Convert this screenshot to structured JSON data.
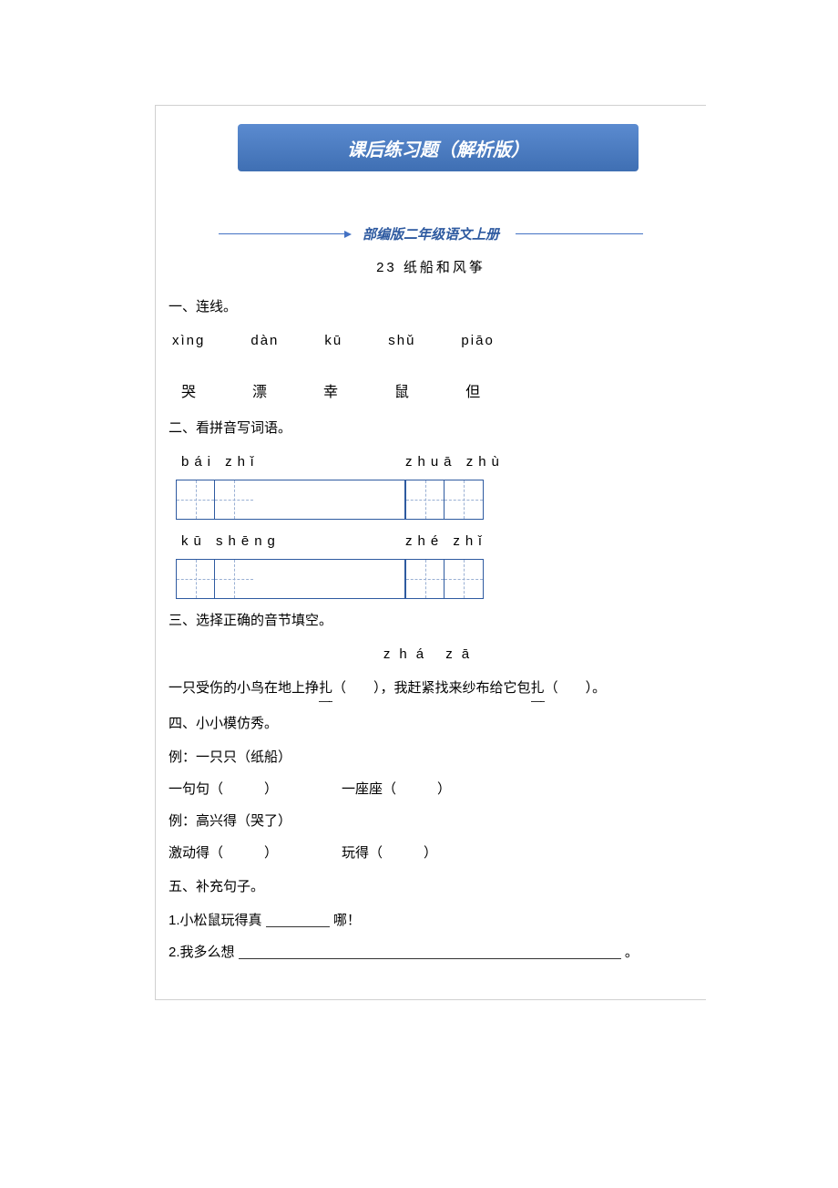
{
  "banner_title": "课后练习题（解析版）",
  "subtitle": "部编版二年级语文上册",
  "lesson": "23  纸船和风筝",
  "sec1": {
    "head": "一、连线。",
    "pinyin": [
      "xìng",
      "dàn",
      "kū",
      "shǔ",
      "piāo"
    ],
    "hanzi": [
      "哭",
      "漂",
      "幸",
      "鼠",
      "但"
    ]
  },
  "sec2": {
    "head": "二、看拼音写词语。",
    "pairs": [
      {
        "left_py": "bái zhǐ",
        "right_py": "zhuā zhù"
      },
      {
        "left_py": "kū shēng",
        "right_py": "zhé zhǐ"
      }
    ]
  },
  "sec3": {
    "head": "三、选择正确的音节填空。",
    "options": "zhá    zā",
    "sentence_a": "一只受伤的小鸟在地上挣",
    "word_a": "扎",
    "mid": "（　　），我赶紧找来纱布给它包",
    "word_b": "扎",
    "tail": "（　　）。"
  },
  "sec4": {
    "head": "四、小小模仿秀。",
    "ex1": "例：一只只（纸船）",
    "line1a": "一句句（　　　）",
    "line1b": "一座座（　　　）",
    "ex2": "例：高兴得（哭了）",
    "line2a": "激动得（　　　）",
    "line2b": "玩得（　　　）"
  },
  "sec5": {
    "head": "五、补充句子。",
    "q1_pre": "1.小松鼠玩得真",
    "q1_post": "哪！",
    "q2_pre": "2.我多么想",
    "q2_post": "。"
  }
}
